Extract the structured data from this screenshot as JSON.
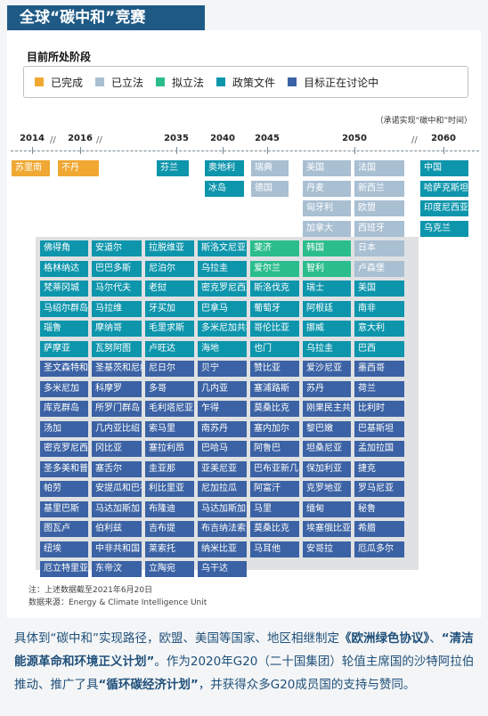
{
  "title": "全球“碳中和”竞赛",
  "stage_title": "目前所处阶段",
  "legend": [
    {
      "label": "已完成",
      "color": "#f0a832"
    },
    {
      "label": "已立法",
      "color": "#a9bfd2"
    },
    {
      "label": "拟立法",
      "color": "#2bbd8c"
    },
    {
      "label": "政策文件",
      "color": "#0d95ac"
    },
    {
      "label": "目标正在讨论中",
      "color": "#3b62a4"
    }
  ],
  "note_top": "（承诺实现“碳中和”时间）",
  "years": [
    "2014",
    "2016",
    "2035",
    "2040",
    "2045",
    "2050",
    "2060"
  ],
  "footer": {
    "note": "注：上述数据截至2021年6月20日",
    "source": "数据来源：Energy & Climate Intelligence Unit"
  },
  "paragraph": {
    "p1": "具体到“碳中和”实现路径，欧盟、美国等国家、地区相继制定",
    "b1": "《欧洲绿色协议》",
    "p2": "、",
    "b2": "“清洁能源革命和环境正义计划”",
    "p3": "。作为2020年G20（二十国集团）轮值主席国的沙特阿拉伯推动、推广了具",
    "b3": "“循环碳经济计划”",
    "p4": "，并获得众多G20成员国的支持与赞同。"
  },
  "chart_data": {
    "type": "table",
    "title": "全球“碳中和”竞赛",
    "ylabel": "目前所处阶段",
    "note": "（承诺实现“碳中和”时间）",
    "status_labels": [
      "已完成",
      "已立法",
      "拟立法",
      "政策文件",
      "目标正在讨论中"
    ],
    "groups": [
      {
        "year": "2014",
        "countries": [
          {
            "name": "苏里南",
            "status": 0
          }
        ]
      },
      {
        "year": "2016",
        "countries": [
          {
            "name": "不丹",
            "status": 0
          }
        ]
      },
      {
        "year": "2035",
        "countries": [
          {
            "name": "芬兰",
            "status": 3
          }
        ]
      },
      {
        "year": "2040",
        "countries": [
          {
            "name": "奥地利",
            "status": 3
          },
          {
            "name": "冰岛",
            "status": 3
          }
        ]
      },
      {
        "year": "2045",
        "countries": [
          {
            "name": "瑞典",
            "status": 1
          },
          {
            "name": "德国",
            "status": 1
          }
        ]
      },
      {
        "year": "2050",
        "countries": [
          {
            "name": "美国",
            "status": 1
          },
          {
            "name": "法国",
            "status": 1
          },
          {
            "name": "丹麦",
            "status": 1
          },
          {
            "name": "新西兰",
            "status": 1
          },
          {
            "name": "匈牙利",
            "status": 1
          },
          {
            "name": "欧盟",
            "status": 1
          },
          {
            "name": "加拿大",
            "status": 1
          },
          {
            "name": "西班牙",
            "status": 1
          },
          {
            "name": "韩国",
            "status": 2
          },
          {
            "name": "日本",
            "status": 1
          },
          {
            "name": "智利",
            "status": 2
          },
          {
            "name": "卢森堡",
            "status": 1
          },
          {
            "name": "佛得角",
            "status": 3
          },
          {
            "name": "安道尔",
            "status": 3
          },
          {
            "name": "拉脱维亚",
            "status": 3
          },
          {
            "name": "斯洛文尼亚",
            "status": 3
          },
          {
            "name": "斐济",
            "status": 2
          },
          {
            "name": "格林纳达",
            "status": 3
          },
          {
            "name": "巴巴多斯",
            "status": 3
          },
          {
            "name": "尼泊尔",
            "status": 3
          },
          {
            "name": "乌拉圭",
            "status": 3
          },
          {
            "name": "爱尔兰",
            "status": 2
          },
          {
            "name": "梵蒂冈城",
            "status": 3
          },
          {
            "name": "马尔代夫",
            "status": 3
          },
          {
            "name": "老挝",
            "status": 3
          },
          {
            "name": "密克罗尼西亚联邦",
            "status": 3
          },
          {
            "name": "斯洛伐克",
            "status": 3
          },
          {
            "name": "瑞士",
            "status": 3
          },
          {
            "name": "美国",
            "status": 3
          },
          {
            "name": "马绍尔群岛",
            "status": 3
          },
          {
            "name": "马拉维",
            "status": 3
          },
          {
            "name": "牙买加",
            "status": 3
          },
          {
            "name": "巴拿马",
            "status": 3
          },
          {
            "name": "葡萄牙",
            "status": 3
          },
          {
            "name": "阿根廷",
            "status": 3
          },
          {
            "name": "南非",
            "status": 3
          },
          {
            "name": "瑙鲁",
            "status": 3
          },
          {
            "name": "摩纳哥",
            "status": 3
          },
          {
            "name": "毛里求斯",
            "status": 3
          },
          {
            "name": "多米尼加共和国",
            "status": 3
          },
          {
            "name": "哥伦比亚",
            "status": 3
          },
          {
            "name": "挪威",
            "status": 3
          },
          {
            "name": "意大利",
            "status": 3
          },
          {
            "name": "萨摩亚",
            "status": 3
          },
          {
            "name": "瓦努阿图",
            "status": 3
          },
          {
            "name": "卢旺达",
            "status": 3
          },
          {
            "name": "海地",
            "status": 3
          },
          {
            "name": "也门",
            "status": 3
          },
          {
            "name": "乌拉圭",
            "status": 3
          },
          {
            "name": "巴西",
            "status": 3
          },
          {
            "name": "圣文森特和格林纳丁斯",
            "status": 4
          },
          {
            "name": "圣基茨和尼维斯",
            "status": 4
          },
          {
            "name": "尼日尔",
            "status": 4
          },
          {
            "name": "贝宁",
            "status": 4
          },
          {
            "name": "赞比亚",
            "status": 4
          },
          {
            "name": "爱沙尼亚",
            "status": 4
          },
          {
            "name": "墨西哥",
            "status": 4
          },
          {
            "name": "多米尼加",
            "status": 4
          },
          {
            "name": "科摩罗",
            "status": 4
          },
          {
            "name": "多哥",
            "status": 4
          },
          {
            "name": "几内亚",
            "status": 4
          },
          {
            "name": "塞浦路斯",
            "status": 4
          },
          {
            "name": "苏丹",
            "status": 4
          },
          {
            "name": "荷兰",
            "status": 4
          },
          {
            "name": "库克群岛",
            "status": 4
          },
          {
            "name": "所罗门群岛",
            "status": 4
          },
          {
            "name": "毛利塔尼亚",
            "status": 4
          },
          {
            "name": "乍得",
            "status": 4
          },
          {
            "name": "莫桑比克",
            "status": 4
          },
          {
            "name": "刚果民主共和国",
            "status": 4
          },
          {
            "name": "比利时",
            "status": 4
          },
          {
            "name": "汤加",
            "status": 4
          },
          {
            "name": "几内亚比绍",
            "status": 4
          },
          {
            "name": "索马里",
            "status": 4
          },
          {
            "name": "南苏丹",
            "status": 4
          },
          {
            "name": "塞内加尔",
            "status": 4
          },
          {
            "name": "黎巴嫩",
            "status": 4
          },
          {
            "name": "巴基斯坦",
            "status": 4
          },
          {
            "name": "密克罗尼西亚",
            "status": 4
          },
          {
            "name": "冈比亚",
            "status": 4
          },
          {
            "name": "塞拉利昂",
            "status": 4
          },
          {
            "name": "巴哈马",
            "status": 4
          },
          {
            "name": "阿鲁巴",
            "status": 4
          },
          {
            "name": "坦桑尼亚",
            "status": 4
          },
          {
            "name": "孟加拉国",
            "status": 4
          },
          {
            "name": "圣多美和普林西比",
            "status": 4
          },
          {
            "name": "塞舌尔",
            "status": 4
          },
          {
            "name": "圭亚那",
            "status": 4
          },
          {
            "name": "亚美尼亚",
            "status": 4
          },
          {
            "name": "巴布亚新几内亚",
            "status": 4
          },
          {
            "name": "保加利亚",
            "status": 4
          },
          {
            "name": "捷克",
            "status": 4
          },
          {
            "name": "帕劳",
            "status": 4
          },
          {
            "name": "安提瓜和巴布达",
            "status": 4
          },
          {
            "name": "利比里亚",
            "status": 4
          },
          {
            "name": "尼加拉瓜",
            "status": 4
          },
          {
            "name": "阿富汗",
            "status": 4
          },
          {
            "name": "克罗地亚",
            "status": 4
          },
          {
            "name": "罗马尼亚",
            "status": 4
          },
          {
            "name": "基里巴斯",
            "status": 4
          },
          {
            "name": "马达加斯加",
            "status": 4
          },
          {
            "name": "布隆迪",
            "status": 4
          },
          {
            "name": "马达加斯加",
            "status": 4
          },
          {
            "name": "马里",
            "status": 4
          },
          {
            "name": "缅甸",
            "status": 4
          },
          {
            "name": "秘鲁",
            "status": 4
          },
          {
            "name": "图瓦卢",
            "status": 4
          },
          {
            "name": "伯利兹",
            "status": 4
          },
          {
            "name": "吉布提",
            "status": 4
          },
          {
            "name": "布吉纳法索",
            "status": 4
          },
          {
            "name": "莫桑比克",
            "status": 4
          },
          {
            "name": "埃塞俄比亚",
            "status": 4
          },
          {
            "name": "希腊",
            "status": 4
          },
          {
            "name": "纽埃",
            "status": 4
          },
          {
            "name": "中非共和国",
            "status": 4
          },
          {
            "name": "莱索托",
            "status": 4
          },
          {
            "name": "纳米比亚",
            "status": 4
          },
          {
            "name": "马耳他",
            "status": 4
          },
          {
            "name": "安哥拉",
            "status": 4
          },
          {
            "name": "厄瓜多尔",
            "status": 4
          },
          {
            "name": "厄立特里亚",
            "status": 4
          },
          {
            "name": "东帝汶",
            "status": 4
          },
          {
            "name": "立陶宛",
            "status": 4
          },
          {
            "name": "乌干达",
            "status": 4
          }
        ]
      },
      {
        "year": "2060",
        "countries": [
          {
            "name": "中国",
            "status": 3
          },
          {
            "name": "哈萨克斯坦",
            "status": 3
          },
          {
            "name": "印度尼西亚",
            "status": 3
          },
          {
            "name": "乌克兰",
            "status": 3
          }
        ]
      }
    ]
  }
}
